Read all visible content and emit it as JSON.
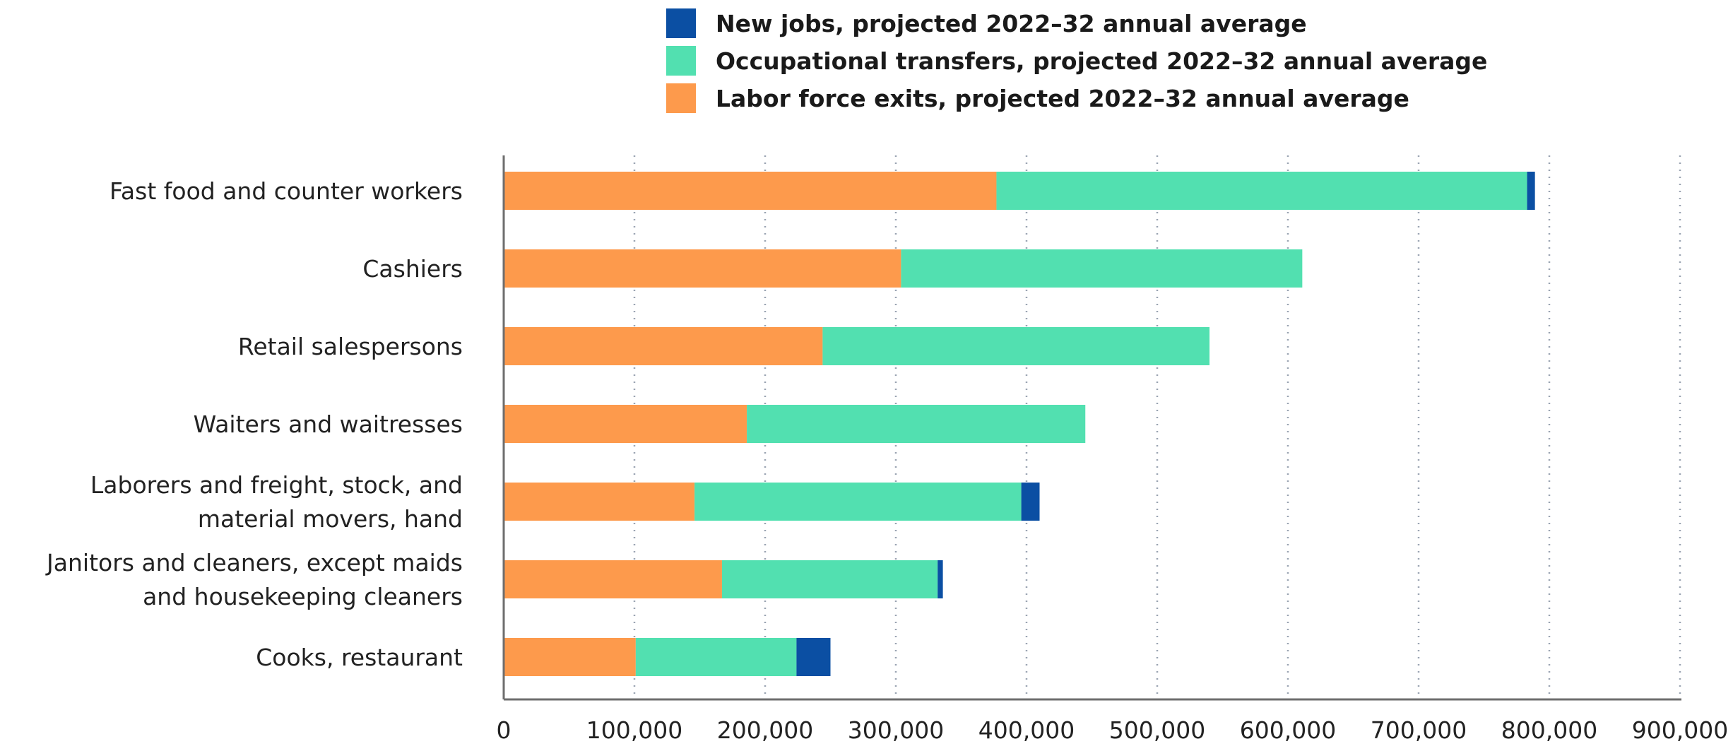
{
  "chart_data": {
    "type": "bar",
    "orientation": "horizontal",
    "stacked": true,
    "categories": [
      [
        "Fast food and counter workers"
      ],
      [
        "Cashiers"
      ],
      [
        "Retail salespersons"
      ],
      [
        "Waiters and waitresses"
      ],
      [
        "Laborers and freight, stock, and",
        "material movers, hand"
      ],
      [
        "Janitors and cleaners, except maids",
        "and housekeeping cleaners"
      ],
      [
        "Cooks, restaurant"
      ]
    ],
    "series": [
      {
        "name": "Labor force exits, projected 2022–32 annual average",
        "color": "#fd9a4c",
        "values": [
          377000,
          304000,
          244000,
          186000,
          146000,
          167000,
          101000
        ]
      },
      {
        "name": "Occupational transfers, projected 2022–32 annual average",
        "color": "#52e0b0",
        "values": [
          406000,
          307000,
          296000,
          259000,
          250000,
          165000,
          123000
        ]
      },
      {
        "name": "New jobs, projected 2022–32 annual average",
        "color": "#0b4fa3",
        "values": [
          6000,
          0,
          0,
          0,
          14000,
          4000,
          26000
        ]
      }
    ],
    "legend_order": [
      2,
      1,
      0
    ],
    "legend_position": "top",
    "xlim": [
      0,
      900000
    ],
    "xticks": [
      "0",
      "100,000",
      "200,000",
      "300,000",
      "400,000",
      "500,000",
      "600,000",
      "700,000",
      "800,000",
      "900,000"
    ],
    "xtick_values": [
      0,
      100000,
      200000,
      300000,
      400000,
      500000,
      600000,
      700000,
      800000,
      900000
    ],
    "grid": "vertical-dotted",
    "title": "",
    "xlabel": "",
    "ylabel": ""
  }
}
